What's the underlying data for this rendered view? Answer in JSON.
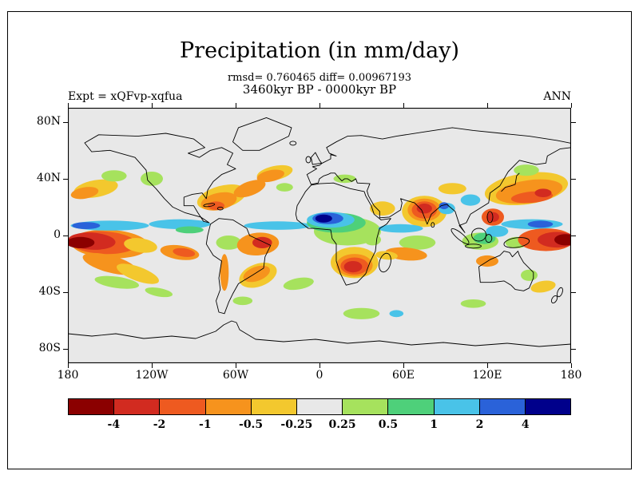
{
  "figure": {
    "title": "Precipitation (in mm/day)",
    "stats_line": "rmsd= 0.760465 diff= 0.00967193",
    "period_line": "3460kyr BP - 0000kyr BP",
    "experiment_label": "Expt = xQFvp-xqfua",
    "season_label": "ANN"
  },
  "chart_data": {
    "type": "heatmap",
    "variant": "filled-contour-world-map",
    "title": "Precipitation (in mm/day)",
    "units": "mm/day",
    "rmsd": 0.760465,
    "diff": 0.00967193,
    "comparison": "3460kyr BP - 0000kyr BP",
    "experiment": "xQFvp-xqfua",
    "season": "ANN",
    "background_color": "#e8e8e8",
    "x_axis": {
      "range_deg": [
        -180,
        180
      ],
      "ticks": [
        {
          "label": "180",
          "lon": -180
        },
        {
          "label": "120W",
          "lon": -120
        },
        {
          "label": "60W",
          "lon": -60
        },
        {
          "label": "0",
          "lon": 0
        },
        {
          "label": "60E",
          "lon": 60
        },
        {
          "label": "120E",
          "lon": 120
        },
        {
          "label": "180",
          "lon": 180
        }
      ]
    },
    "y_axis": {
      "range_deg": [
        -90,
        90
      ],
      "ticks": [
        {
          "label": "80N",
          "lat": 80
        },
        {
          "label": "40N",
          "lat": 40
        },
        {
          "label": "0",
          "lat": 0
        },
        {
          "label": "40S",
          "lat": -40
        },
        {
          "label": "80S",
          "lat": -80
        }
      ]
    },
    "colorbar": {
      "position": "bottom",
      "levels": [
        -4,
        -2,
        -1,
        -0.5,
        -0.25,
        0.25,
        0.5,
        1,
        2,
        4
      ],
      "boundary_labels": [
        "-4",
        "-2",
        "-1",
        "-0.5",
        "-0.25",
        "0.25",
        "0.5",
        "1",
        "2",
        "4"
      ],
      "segment_colors": [
        "#8b0000",
        "#d22b20",
        "#ee5a20",
        "#f6931d",
        "#f3c82e",
        "#e8e8e8",
        "#a6e25d",
        "#4ed07a",
        "#49c3e8",
        "#2a62d9",
        "#00008b"
      ]
    },
    "anomaly_regions_fields": [
      "lon",
      "lat",
      "rx_deg",
      "ry_deg",
      "rotation_deg",
      "value_mm_per_day"
    ],
    "anomaly_regions": [
      [
        -160,
        33,
        16,
        6,
        -10,
        -0.35
      ],
      [
        -168,
        30,
        10,
        4,
        -10,
        -0.7
      ],
      [
        -147,
        42,
        9,
        4,
        0,
        0.35
      ],
      [
        -120,
        40,
        8,
        5,
        0,
        0.35
      ],
      [
        -70,
        27,
        18,
        8,
        -15,
        -0.35
      ],
      [
        -72,
        24,
        13,
        6,
        -12,
        -0.7
      ],
      [
        -74,
        21,
        6,
        3,
        0,
        -1.5
      ],
      [
        -50,
        33,
        12,
        5,
        -20,
        -0.7
      ],
      [
        -32,
        44,
        13,
        5,
        -12,
        -0.35
      ],
      [
        -35,
        42,
        10,
        4,
        -12,
        -0.7
      ],
      [
        -25,
        34,
        6,
        3,
        0,
        0.35
      ],
      [
        -150,
        -6,
        28,
        10,
        3,
        -0.7
      ],
      [
        -155,
        -5,
        24,
        8,
        3,
        -1.5
      ],
      [
        -163,
        -4,
        17,
        6,
        3,
        -3
      ],
      [
        -171,
        -5,
        10,
        4,
        0,
        -5
      ],
      [
        -128,
        -7,
        12,
        5,
        8,
        -0.35
      ],
      [
        -150,
        7,
        28,
        3.5,
        0,
        1.5
      ],
      [
        -167,
        7,
        10,
        2.5,
        0,
        3
      ],
      [
        -100,
        8,
        22,
        3.5,
        0,
        1.5
      ],
      [
        -93,
        4,
        10,
        2.5,
        0,
        0.7
      ],
      [
        -100,
        -12,
        14,
        5,
        8,
        -0.7
      ],
      [
        -97,
        -12,
        8,
        3,
        8,
        -1.5
      ],
      [
        -150,
        -20,
        20,
        6,
        15,
        -0.7
      ],
      [
        -130,
        -27,
        16,
        5,
        20,
        -0.35
      ],
      [
        -145,
        -33,
        16,
        4,
        8,
        0.35
      ],
      [
        -115,
        -40,
        10,
        3,
        10,
        0.35
      ],
      [
        -65,
        -5,
        9,
        5,
        0,
        0.35
      ],
      [
        -44,
        -6,
        15,
        8,
        -5,
        -0.7
      ],
      [
        -41,
        -5,
        7,
        4,
        0,
        -3
      ],
      [
        -68,
        -26,
        3,
        13,
        0,
        -0.7
      ],
      [
        -44,
        -28,
        14,
        8,
        -20,
        -0.35
      ],
      [
        -45,
        -27,
        10,
        5,
        -20,
        -0.7
      ],
      [
        -15,
        -34,
        11,
        4,
        -10,
        0.35
      ],
      [
        -55,
        -46,
        7,
        3,
        0,
        0.35
      ],
      [
        -30,
        7,
        24,
        3,
        0,
        1.5
      ],
      [
        20,
        3,
        24,
        10,
        0,
        0.35
      ],
      [
        12,
        9,
        21,
        7,
        0,
        0.7
      ],
      [
        8,
        11,
        17,
        5.5,
        0,
        1.5
      ],
      [
        6,
        12,
        11,
        4,
        0,
        3
      ],
      [
        3,
        12,
        6,
        2.8,
        0,
        5
      ],
      [
        18,
        40,
        8,
        3,
        0,
        0.35
      ],
      [
        25,
        -19,
        17,
        11,
        0,
        -0.35
      ],
      [
        25,
        -21,
        13,
        8,
        0,
        -0.7
      ],
      [
        25,
        -21.5,
        10,
        6,
        0,
        -1.5
      ],
      [
        24,
        -22,
        6.5,
        4,
        0,
        -3
      ],
      [
        38,
        -3,
        6,
        4,
        0,
        0.35
      ],
      [
        45,
        19,
        9,
        5,
        0,
        -0.35
      ],
      [
        75,
        17,
        16,
        11,
        0,
        -0.35
      ],
      [
        75,
        18,
        12,
        8,
        0,
        -0.7
      ],
      [
        75,
        18,
        9,
        6,
        0,
        -1.5
      ],
      [
        75,
        19,
        5.5,
        3.5,
        0,
        -3
      ],
      [
        91,
        19,
        6,
        4,
        0,
        1.5
      ],
      [
        89,
        21,
        3.5,
        2.5,
        0,
        3
      ],
      [
        108,
        25,
        7,
        4,
        0,
        1.5
      ],
      [
        95,
        33,
        10,
        4,
        0,
        -0.35
      ],
      [
        58,
        5,
        16,
        3,
        0,
        1.5
      ],
      [
        70,
        -5,
        13,
        5,
        0,
        0.35
      ],
      [
        62,
        -13,
        15,
        4.5,
        5,
        -0.7
      ],
      [
        48,
        -14,
        8,
        3,
        5,
        -0.35
      ],
      [
        115,
        -4,
        13,
        6,
        0,
        0.35
      ],
      [
        118,
        -2,
        8,
        4,
        0,
        0.7
      ],
      [
        127,
        3,
        8,
        4,
        0,
        1.5
      ],
      [
        124,
        13,
        8,
        6,
        0,
        -1.5
      ],
      [
        124,
        13,
        4.5,
        3.5,
        0,
        -3
      ],
      [
        141,
        -5,
        8,
        4,
        0,
        0.35
      ],
      [
        120,
        -18,
        8,
        4,
        0,
        -0.7
      ],
      [
        150,
        -28,
        6,
        4,
        0,
        0.35
      ],
      [
        160,
        -36,
        9,
        4,
        -10,
        -0.35
      ],
      [
        148,
        33,
        30,
        11,
        -8,
        -0.35
      ],
      [
        150,
        31,
        24,
        8,
        -8,
        -0.7
      ],
      [
        152,
        27,
        15,
        4,
        -5,
        -1.5
      ],
      [
        160,
        30,
        6,
        3,
        0,
        -3
      ],
      [
        148,
        46,
        9,
        4,
        0,
        0.35
      ],
      [
        152,
        8,
        22,
        3.5,
        0,
        1.5
      ],
      [
        158,
        8,
        9,
        2.5,
        0,
        3
      ],
      [
        162,
        -3,
        20,
        8,
        0,
        -1.5
      ],
      [
        170,
        -3,
        14,
        5.5,
        0,
        -3
      ],
      [
        176,
        -3,
        8,
        4,
        0,
        -5
      ],
      [
        30,
        -55,
        13,
        4,
        0,
        0.35
      ],
      [
        55,
        -55,
        5,
        2.5,
        0,
        1.5
      ],
      [
        110,
        -48,
        9,
        3,
        0,
        0.35
      ]
    ]
  }
}
